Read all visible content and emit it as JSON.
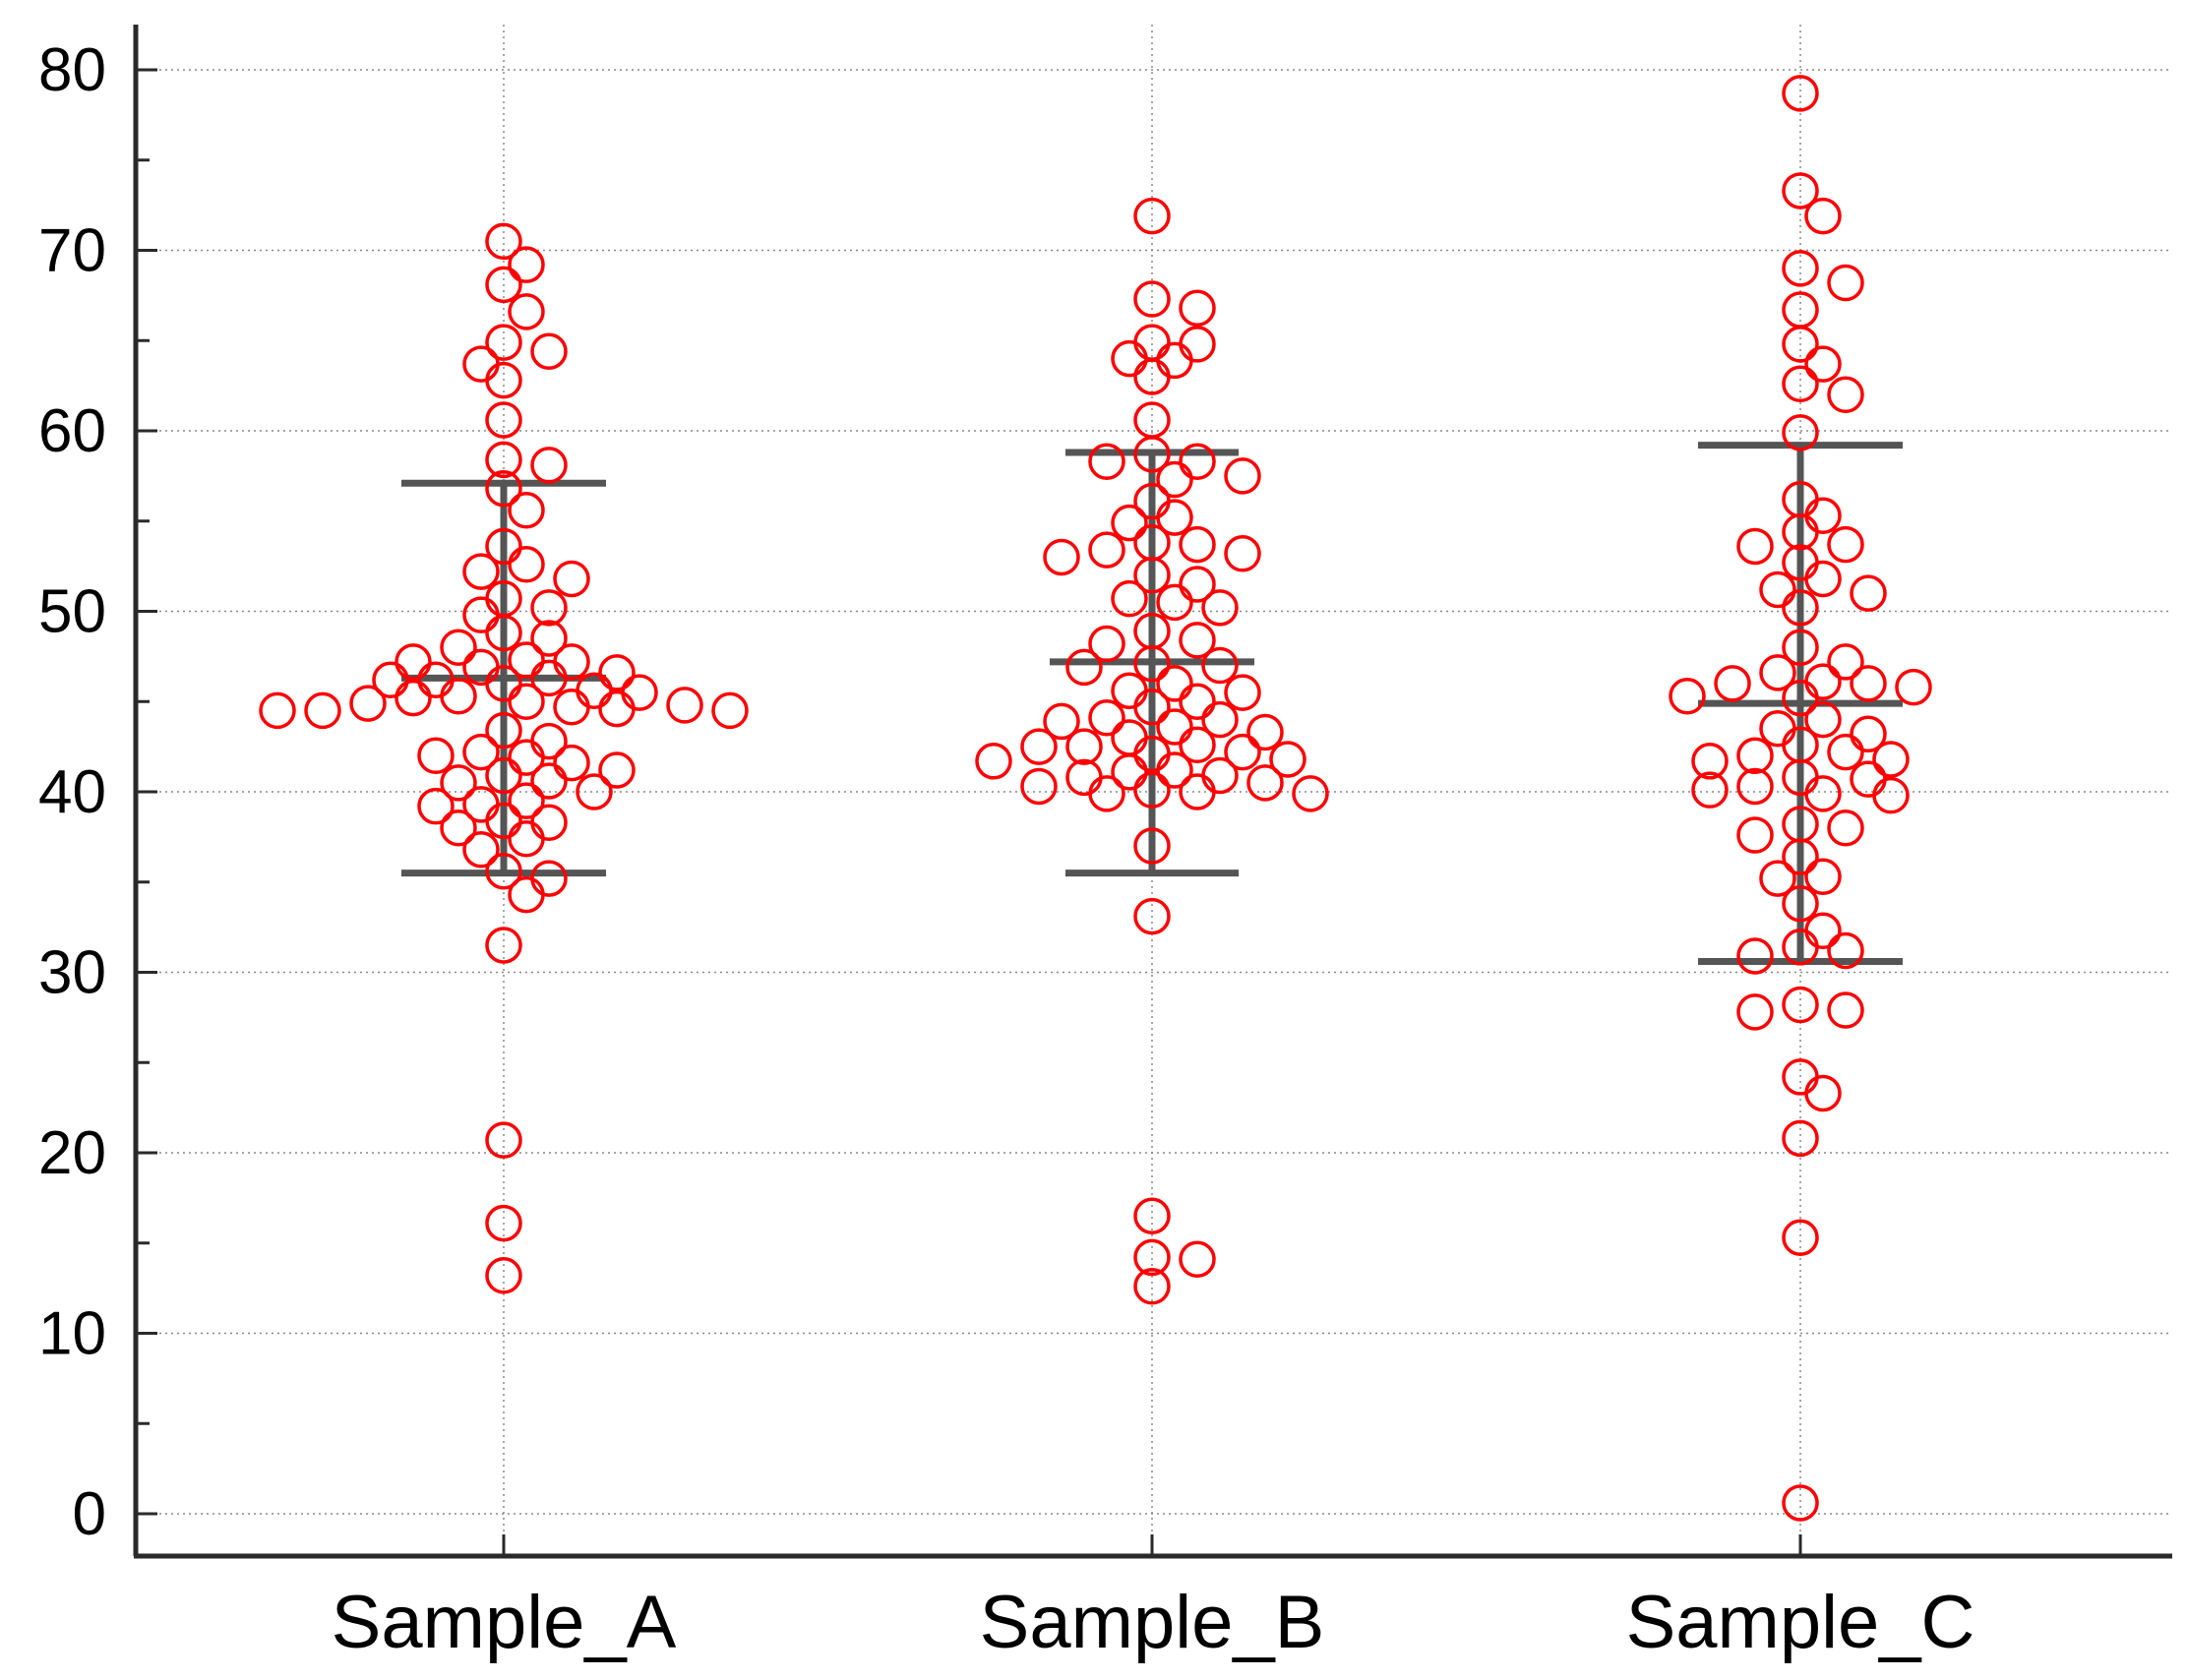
{
  "chart_data": {
    "type": "scatter",
    "subtype": "dot-plot with mean and standard deviation bars",
    "title": "",
    "xlabel": "",
    "ylabel": "",
    "ylim": [
      -2,
      82
    ],
    "yticks": [
      0,
      10,
      20,
      30,
      40,
      50,
      60,
      70,
      80
    ],
    "y_minor_step": 5,
    "grid": true,
    "marker_color": "#ff0000",
    "bar_color": "#555555",
    "categories": [
      "Sample_A",
      "Sample_B",
      "Sample_C"
    ],
    "series": [
      {
        "name": "Sample_A",
        "mean": 46.3,
        "sd_upper": 57.1,
        "sd_lower": 35.5,
        "values": [
          70.5,
          69.2,
          68.1,
          66.6,
          64.9,
          64.4,
          63.7,
          62.8,
          60.6,
          58.4,
          58.1,
          56.8,
          55.6,
          53.6,
          52.6,
          52.2,
          51.8,
          50.7,
          50.2,
          49.8,
          48.8,
          48.5,
          48.0,
          47.3,
          47.2,
          47.2,
          46.9,
          46.6,
          46.3,
          46.2,
          46.2,
          46.0,
          45.6,
          45.5,
          45.3,
          45.2,
          45.0,
          44.9,
          44.8,
          44.7,
          44.6,
          44.5,
          44.5,
          44.5,
          43.4,
          42.8,
          42.2,
          42.0,
          41.9,
          41.6,
          41.2,
          40.9,
          40.6,
          40.5,
          40.0,
          39.5,
          39.3,
          39.2,
          38.4,
          38.3,
          38.0,
          37.4,
          36.8,
          35.6,
          35.2,
          34.3,
          31.5,
          20.7,
          16.1,
          13.2
        ]
      },
      {
        "name": "Sample_B",
        "mean": 47.2,
        "sd_upper": 58.8,
        "sd_lower": 35.5,
        "values": [
          71.9,
          67.3,
          66.8,
          64.9,
          64.8,
          64.0,
          63.9,
          63.0,
          60.6,
          58.7,
          58.3,
          58.3,
          57.5,
          57.3,
          56.1,
          55.2,
          54.9,
          53.8,
          53.7,
          53.4,
          53.2,
          53.0,
          52.0,
          51.5,
          50.7,
          50.5,
          50.2,
          48.9,
          48.4,
          48.2,
          47.1,
          47.0,
          46.9,
          46.0,
          45.6,
          45.5,
          45.0,
          44.7,
          44.1,
          44.0,
          43.9,
          43.6,
          43.3,
          43.0,
          42.6,
          42.5,
          42.5,
          42.2,
          42.1,
          41.8,
          41.7,
          41.2,
          41.1,
          40.9,
          40.8,
          40.5,
          40.3,
          40.1,
          40.0,
          39.9,
          39.9,
          37.0,
          33.1,
          16.5,
          14.2,
          14.1,
          12.6
        ]
      },
      {
        "name": "Sample_C",
        "mean": 44.9,
        "sd_upper": 59.2,
        "sd_lower": 30.6,
        "values": [
          78.7,
          73.3,
          71.9,
          69.0,
          68.2,
          66.7,
          64.8,
          63.7,
          62.6,
          62.0,
          59.9,
          56.2,
          55.3,
          54.4,
          53.7,
          53.6,
          52.7,
          51.8,
          51.2,
          51.0,
          50.2,
          48.0,
          47.2,
          46.6,
          46.1,
          46.0,
          46.0,
          45.8,
          45.3,
          45.2,
          44.0,
          43.5,
          43.2,
          42.6,
          42.2,
          42.0,
          41.8,
          41.7,
          40.8,
          40.7,
          40.3,
          40.1,
          39.9,
          39.8,
          38.2,
          38.0,
          37.6,
          36.4,
          35.3,
          35.2,
          33.8,
          32.3,
          31.4,
          31.2,
          30.9,
          28.2,
          27.9,
          27.8,
          24.2,
          23.3,
          20.8,
          15.3,
          0.6
        ]
      }
    ]
  }
}
